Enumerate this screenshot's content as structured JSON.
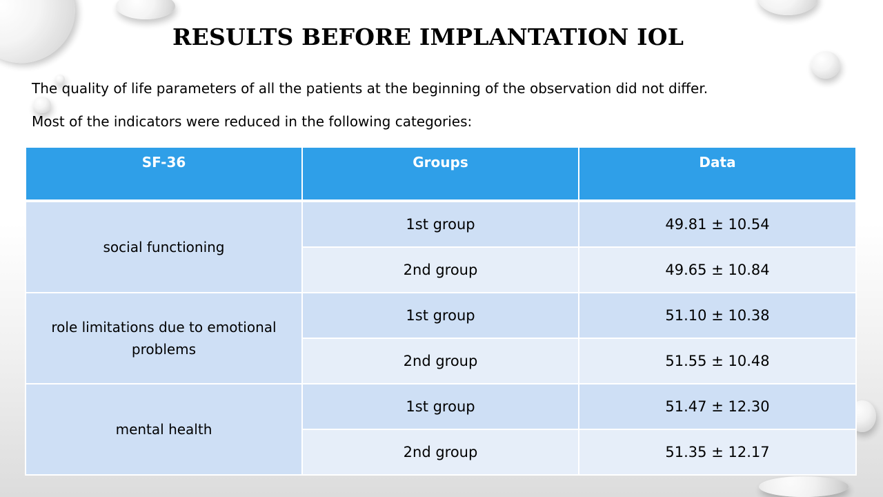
{
  "slide": {
    "title": "RESULTS BEFORE IMPLANTATION IOL",
    "intro_line_1": "The quality of life parameters of all the patients at the beginning of the observation did not differ.",
    "intro_line_2": "Most of the indicators were reduced in the following categories:"
  },
  "table": {
    "headers": [
      "SF-36",
      "Groups",
      "Data"
    ],
    "categories": [
      {
        "name": "social functioning",
        "rows": [
          {
            "group": "1st group",
            "data": "49.81 ± 10.54"
          },
          {
            "group": "2nd group",
            "data": "49.65 ± 10.84"
          }
        ]
      },
      {
        "name": "role limitations due to emotional problems",
        "rows": [
          {
            "group": "1st group",
            "data": "51.10 ± 10.38"
          },
          {
            "group": "2nd group",
            "data": "51.55 ± 10.48"
          }
        ]
      },
      {
        "name": "mental health",
        "rows": [
          {
            "group": "1st group",
            "data": "51.47 ± 12.30"
          },
          {
            "group": "2nd group",
            "data": "51.35 ± 12.17"
          }
        ]
      }
    ]
  },
  "colors": {
    "header_bg": "#2f9fe8",
    "row_dark": "#cedff5",
    "row_light": "#e6eef9"
  }
}
